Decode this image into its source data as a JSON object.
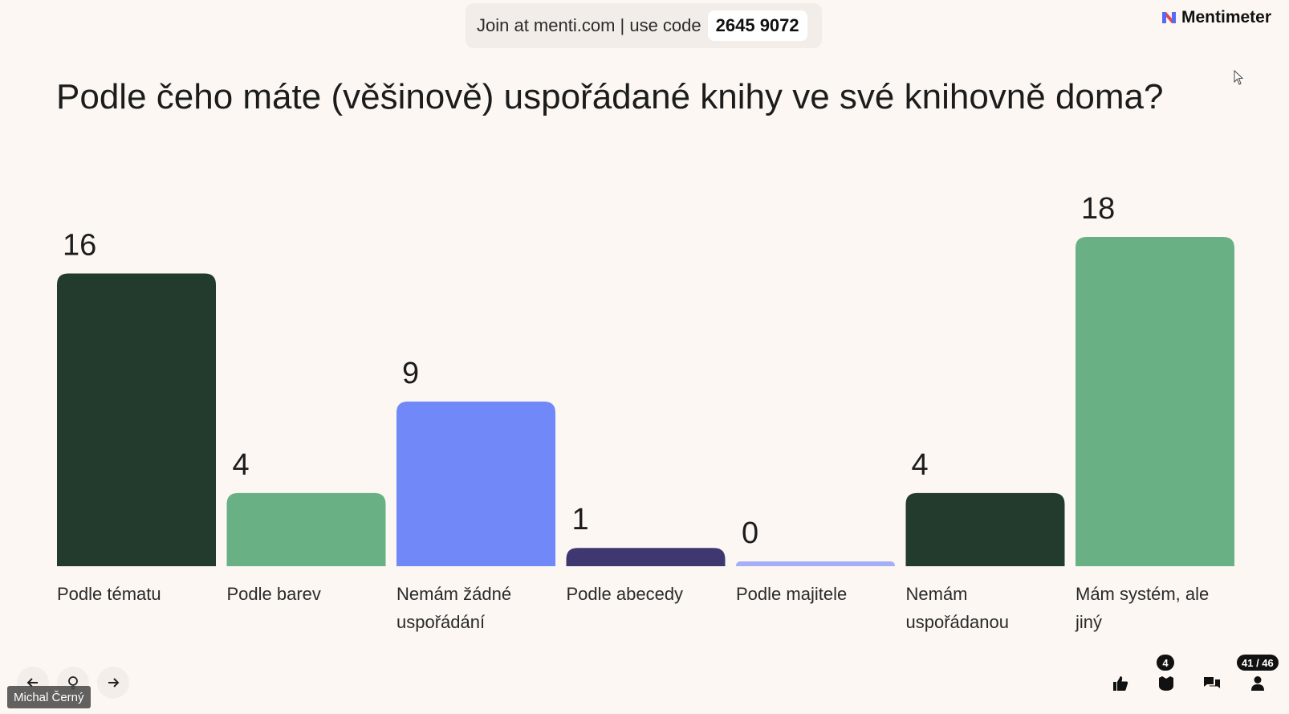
{
  "join": {
    "text": "Join at menti.com | use code",
    "code": "2645 9072"
  },
  "brand": {
    "name": "Mentimeter"
  },
  "question": "Podle čeho máte (věšinově) uspořádané knihy ve své knihovně doma?",
  "chart_data": {
    "type": "bar",
    "title": "Podle čeho máte (věšinově) uspořádané knihy ve své knihovně doma?",
    "categories": [
      [
        "Podle tématu"
      ],
      [
        "Podle barev"
      ],
      [
        "Nemám žádné",
        "uspořádání"
      ],
      [
        "Podle abecedy"
      ],
      [
        "Podle majitele"
      ],
      [
        "Nemám",
        "uspořádanou"
      ],
      [
        "Mám systém, ale",
        "jiný"
      ]
    ],
    "values": [
      16,
      4,
      9,
      1,
      0,
      4,
      18
    ],
    "colors": [
      "#233b2d",
      "#6ab085",
      "#7088f8",
      "#3f3870",
      "#a6aef8",
      "#233b2d",
      "#6ab085"
    ],
    "ylim": [
      0,
      18
    ],
    "grid": false,
    "legend": "none"
  },
  "navigation": {
    "prev_icon": "arrow-left-icon",
    "hint_icon": "lightbulb-icon",
    "next_icon": "arrow-right-icon"
  },
  "presenter": {
    "name": "Michal Černý"
  },
  "toolbar": {
    "reactions_icon": "thumbs-up-icon",
    "qa_icon": "qa-icon",
    "qa_badge": "4",
    "comments_icon": "comments-icon",
    "participants_icon": "person-icon",
    "participants_badge": "41 / 46"
  }
}
